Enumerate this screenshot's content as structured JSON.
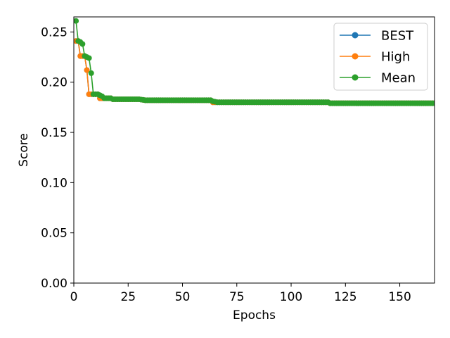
{
  "chart_data": {
    "type": "line",
    "xlabel": "Epochs",
    "ylabel": "Score",
    "xlim": [
      0,
      166
    ],
    "ylim": [
      0.0,
      0.265
    ],
    "xticks": [
      0,
      25,
      50,
      75,
      100,
      125,
      150
    ],
    "xtick_labels": [
      "0",
      "25",
      "50",
      "75",
      "100",
      "125",
      "150"
    ],
    "yticks": [
      0.0,
      0.05,
      0.1,
      0.15,
      0.2,
      0.25
    ],
    "ytick_labels": [
      "0.00",
      "0.05",
      "0.10",
      "0.15",
      "0.20",
      "0.25"
    ],
    "grid": false,
    "legend_position": "top-right",
    "series": [
      {
        "name": "BEST",
        "color": "#1f77b4",
        "points": [
          [
            1,
            0.241
          ],
          [
            2,
            0.241
          ],
          [
            3,
            0.226
          ],
          [
            4,
            0.226
          ],
          [
            5,
            0.226
          ],
          [
            6,
            0.212
          ],
          [
            7,
            0.188
          ],
          [
            8,
            0.188
          ],
          [
            9,
            0.188
          ],
          [
            10,
            0.188
          ],
          [
            11,
            0.188
          ],
          [
            12,
            0.184
          ],
          [
            13,
            0.184
          ],
          [
            14,
            0.184
          ],
          [
            15,
            0.184
          ],
          [
            16,
            0.184
          ],
          [
            17,
            0.184
          ],
          [
            18,
            0.183
          ],
          [
            20,
            0.183
          ],
          [
            30,
            0.183
          ],
          [
            33,
            0.182
          ],
          [
            63,
            0.182
          ],
          [
            64,
            0.18
          ],
          [
            66,
            0.18
          ],
          [
            117,
            0.18
          ],
          [
            118,
            0.179
          ],
          [
            166,
            0.179
          ]
        ]
      },
      {
        "name": "High",
        "color": "#ff7f0e",
        "points": [
          [
            1,
            0.241
          ],
          [
            2,
            0.241
          ],
          [
            3,
            0.226
          ],
          [
            4,
            0.226
          ],
          [
            5,
            0.226
          ],
          [
            6,
            0.212
          ],
          [
            7,
            0.188
          ],
          [
            8,
            0.188
          ],
          [
            9,
            0.188
          ],
          [
            10,
            0.188
          ],
          [
            11,
            0.188
          ],
          [
            12,
            0.184
          ],
          [
            13,
            0.184
          ],
          [
            14,
            0.184
          ],
          [
            15,
            0.184
          ],
          [
            16,
            0.184
          ],
          [
            17,
            0.184
          ],
          [
            18,
            0.183
          ],
          [
            20,
            0.183
          ],
          [
            30,
            0.183
          ],
          [
            33,
            0.182
          ],
          [
            63,
            0.182
          ],
          [
            64,
            0.18
          ],
          [
            66,
            0.18
          ],
          [
            117,
            0.18
          ],
          [
            118,
            0.179
          ],
          [
            166,
            0.179
          ]
        ]
      },
      {
        "name": "Mean",
        "color": "#2ca02c",
        "points": [
          [
            1,
            0.261
          ],
          [
            2,
            0.241
          ],
          [
            3,
            0.24
          ],
          [
            4,
            0.238
          ],
          [
            5,
            0.226
          ],
          [
            6,
            0.225
          ],
          [
            7,
            0.224
          ],
          [
            8,
            0.209
          ],
          [
            9,
            0.188
          ],
          [
            10,
            0.188
          ],
          [
            11,
            0.188
          ],
          [
            12,
            0.187
          ],
          [
            13,
            0.186
          ],
          [
            14,
            0.184
          ],
          [
            15,
            0.184
          ],
          [
            16,
            0.184
          ],
          [
            17,
            0.184
          ],
          [
            18,
            0.183
          ],
          [
            20,
            0.183
          ],
          [
            30,
            0.183
          ],
          [
            33,
            0.182
          ],
          [
            63,
            0.182
          ],
          [
            64,
            0.181
          ],
          [
            66,
            0.18
          ],
          [
            117,
            0.18
          ],
          [
            118,
            0.179
          ],
          [
            166,
            0.179
          ]
        ]
      }
    ]
  }
}
